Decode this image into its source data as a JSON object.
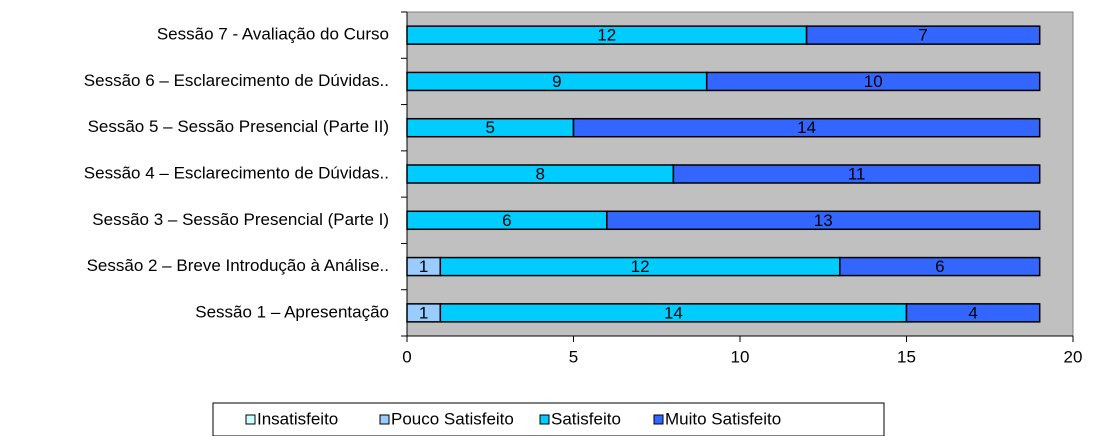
{
  "chart_data": {
    "type": "stacked_barh",
    "categories": [
      "Sessão 7 - Avaliação do Curso",
      "Sessão 6 – Esclarecimento de Dúvidas..",
      "Sessão 5 – Sessão Presencial (Parte II)",
      "Sessão 4 – Esclarecimento de Dúvidas..",
      "Sessão 3 – Sessão Presencial (Parte I)",
      "Sessão 2 – Breve Introdução à Análise..",
      "Sessão 1 – Apresentação"
    ],
    "series": [
      {
        "name": "Insatisfeito",
        "color": "#ccffff",
        "values": [
          null,
          null,
          null,
          null,
          null,
          null,
          null
        ]
      },
      {
        "name": "Pouco Satisfeito",
        "color": "#99ccff",
        "values": [
          null,
          null,
          null,
          null,
          null,
          1,
          1
        ]
      },
      {
        "name": "Satisfeito",
        "color": "#00ccff",
        "values": [
          12,
          9,
          5,
          8,
          6,
          12,
          14
        ]
      },
      {
        "name": "Muito Satisfeito",
        "color": "#3366ff",
        "values": [
          7,
          10,
          14,
          11,
          13,
          6,
          4
        ]
      }
    ],
    "xlim": [
      0,
      20
    ],
    "xticks": [
      0,
      5,
      10,
      15,
      20
    ],
    "grid": false,
    "legend": "bottom"
  }
}
